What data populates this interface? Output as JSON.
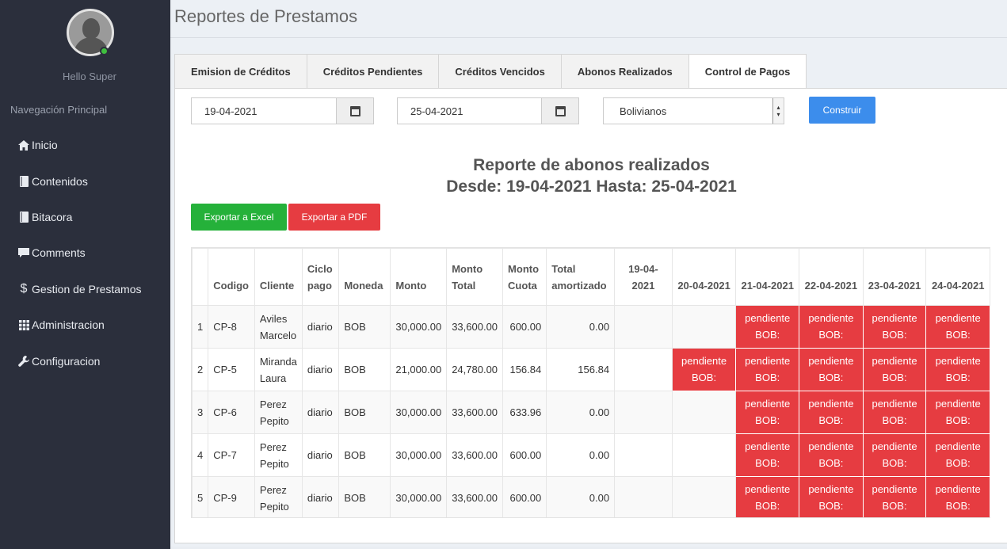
{
  "sidebar": {
    "hello": "Hello Super",
    "nav_header": "Navegación Principal",
    "items": [
      {
        "label": "Inicio",
        "icon": "home-icon"
      },
      {
        "label": "Contenidos",
        "icon": "book-icon"
      },
      {
        "label": "Bitacora",
        "icon": "book-icon"
      },
      {
        "label": "Comments",
        "icon": "comment-icon"
      },
      {
        "label": "Gestion de Prestamos",
        "icon": "dollar-icon"
      },
      {
        "label": "Administracion",
        "icon": "grid-icon"
      },
      {
        "label": "Configuracion",
        "icon": "wrench-icon"
      }
    ]
  },
  "header": {
    "title": "Reportes de Prestamos"
  },
  "tabs": [
    {
      "label": "Emision de Créditos"
    },
    {
      "label": "Créditos Pendientes"
    },
    {
      "label": "Créditos Vencidos"
    },
    {
      "label": "Abonos Realizados"
    },
    {
      "label": "Control de Pagos"
    }
  ],
  "filters": {
    "date_from": "19-04-2021",
    "date_to": "25-04-2021",
    "currency": "Bolivianos",
    "build_label": "Construir"
  },
  "report": {
    "title_line1": "Reporte de abonos realizados",
    "title_line2": "Desde: 19-04-2021 Hasta: 25-04-2021",
    "export_excel": "Exportar a Excel",
    "export_pdf": "Exportar a PDF"
  },
  "table": {
    "headers": {
      "idx": "",
      "codigo": "Codigo",
      "cliente": "Cliente",
      "ciclo_a": "Ciclo",
      "ciclo_b": "pago",
      "moneda": "Moneda",
      "monto": "Monto",
      "monto_total_a": "Monto",
      "monto_total_b": "Total",
      "monto_cuota_a": "Monto",
      "monto_cuota_b": "Cuota",
      "total_amort_a": "Total",
      "total_amort_b": "amortizado",
      "d1": "19-04-2021",
      "d2": "20-04-2021",
      "d3": "21-04-2021",
      "d4": "22-04-2021",
      "d5": "23-04-2021",
      "d6": "24-04-2021"
    },
    "pending_line1": "pendiente",
    "pending_line2": "BOB:",
    "rows": [
      {
        "idx": "1",
        "codigo": "CP-8",
        "cliente_a": "Aviles",
        "cliente_b": "Marcelo",
        "ciclo": "diario",
        "moneda": "BOB",
        "monto": "30,000.00",
        "monto_total": "33,600.00",
        "monto_cuota": "600.00",
        "total_amort": "0.00"
      },
      {
        "idx": "2",
        "codigo": "CP-5",
        "cliente_a": "Miranda",
        "cliente_b": "Laura",
        "ciclo": "diario",
        "moneda": "BOB",
        "monto": "21,000.00",
        "monto_total": "24,780.00",
        "monto_cuota": "156.84",
        "total_amort": "156.84"
      },
      {
        "idx": "3",
        "codigo": "CP-6",
        "cliente_a": "Perez",
        "cliente_b": "Pepito",
        "ciclo": "diario",
        "moneda": "BOB",
        "monto": "30,000.00",
        "monto_total": "33,600.00",
        "monto_cuota": "633.96",
        "total_amort": "0.00"
      },
      {
        "idx": "4",
        "codigo": "CP-7",
        "cliente_a": "Perez",
        "cliente_b": "Pepito",
        "ciclo": "diario",
        "moneda": "BOB",
        "monto": "30,000.00",
        "monto_total": "33,600.00",
        "monto_cuota": "600.00",
        "total_amort": "0.00"
      },
      {
        "idx": "5",
        "codigo": "CP-9",
        "cliente_a": "Perez",
        "cliente_b": "Pepito",
        "ciclo": "diario",
        "moneda": "BOB",
        "monto": "30,000.00",
        "monto_total": "33,600.00",
        "monto_cuota": "600.00",
        "total_amort": "0.00"
      }
    ]
  },
  "colors": {
    "sidebar_bg": "#2b2f3c",
    "pending": "#e63c41",
    "excel": "#25b13a",
    "build": "#3c8dec"
  }
}
